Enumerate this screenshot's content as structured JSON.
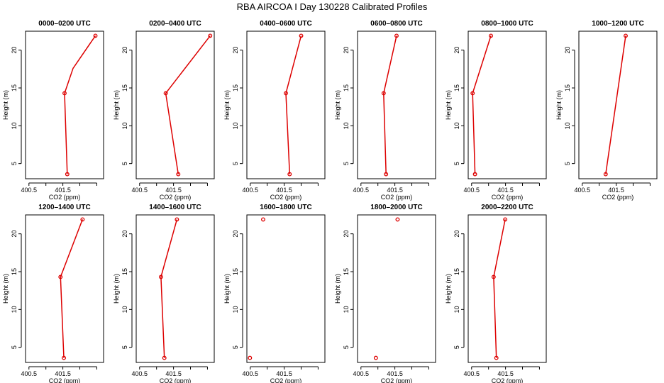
{
  "title": "RBA AIRCOA I  Day 130228  Calibrated Profiles",
  "chart_data": {
    "type": "line",
    "title": "RBA AIRCOA I  Day 130228  Calibrated Profiles",
    "xlabel": "CO2 (ppm)",
    "ylabel": "Height (m)",
    "xlim": [
      400.4,
      402.7
    ],
    "ylim": [
      3,
      22.5
    ],
    "x_ticks": [
      "400.5",
      "401.5"
    ],
    "y_ticks": [
      "5",
      "10",
      "15",
      "20"
    ],
    "marker_color": "#dd0000",
    "line_color": "#dd0000",
    "panels": [
      {
        "title": "0000–0200 UTC",
        "points": [
          {
            "x": 401.63,
            "y": 3.6
          },
          {
            "x": 401.55,
            "y": 14.3
          },
          {
            "x": 401.8,
            "y": 17.6
          },
          {
            "x": 402.46,
            "y": 21.9
          }
        ]
      },
      {
        "title": "0200–0400 UTC",
        "points": [
          {
            "x": 401.64,
            "y": 3.6
          },
          {
            "x": 401.27,
            "y": 14.3
          },
          {
            "x": 402.58,
            "y": 21.9
          }
        ]
      },
      {
        "title": "0400–0600 UTC",
        "points": [
          {
            "x": 401.66,
            "y": 3.6
          },
          {
            "x": 401.55,
            "y": 14.3
          },
          {
            "x": 402.0,
            "y": 21.9
          }
        ]
      },
      {
        "title": "0600–0800 UTC",
        "points": [
          {
            "x": 401.24,
            "y": 3.6
          },
          {
            "x": 401.17,
            "y": 14.3
          },
          {
            "x": 401.55,
            "y": 21.9
          }
        ]
      },
      {
        "title": "0800–1000 UTC",
        "points": [
          {
            "x": 400.6,
            "y": 3.6
          },
          {
            "x": 400.53,
            "y": 14.3
          },
          {
            "x": 401.07,
            "y": 21.9
          }
        ]
      },
      {
        "title": "1000–1200 UTC",
        "points": [
          {
            "x": 401.19,
            "y": 3.6
          },
          {
            "x": 401.78,
            "y": 21.9
          }
        ]
      },
      {
        "title": "1200–1400 UTC",
        "points": [
          {
            "x": 401.53,
            "y": 3.6
          },
          {
            "x": 401.43,
            "y": 14.3
          },
          {
            "x": 402.08,
            "y": 21.9
          }
        ]
      },
      {
        "title": "1400–1600 UTC",
        "points": [
          {
            "x": 401.23,
            "y": 3.6
          },
          {
            "x": 401.13,
            "y": 14.3
          },
          {
            "x": 401.6,
            "y": 21.9
          }
        ]
      },
      {
        "title": "1600–1800 UTC",
        "points": [
          {
            "x": 400.49,
            "y": 3.6
          },
          {
            "x": 400.88,
            "y": 21.9
          }
        ],
        "connected": false
      },
      {
        "title": "1800–2000 UTC",
        "points": [
          {
            "x": 400.94,
            "y": 3.6
          },
          {
            "x": 401.58,
            "y": 21.9
          }
        ],
        "connected": false
      },
      {
        "title": "2000–2200 UTC",
        "points": [
          {
            "x": 401.23,
            "y": 3.6
          },
          {
            "x": 401.15,
            "y": 14.3
          },
          {
            "x": 401.49,
            "y": 21.9
          }
        ]
      }
    ]
  }
}
